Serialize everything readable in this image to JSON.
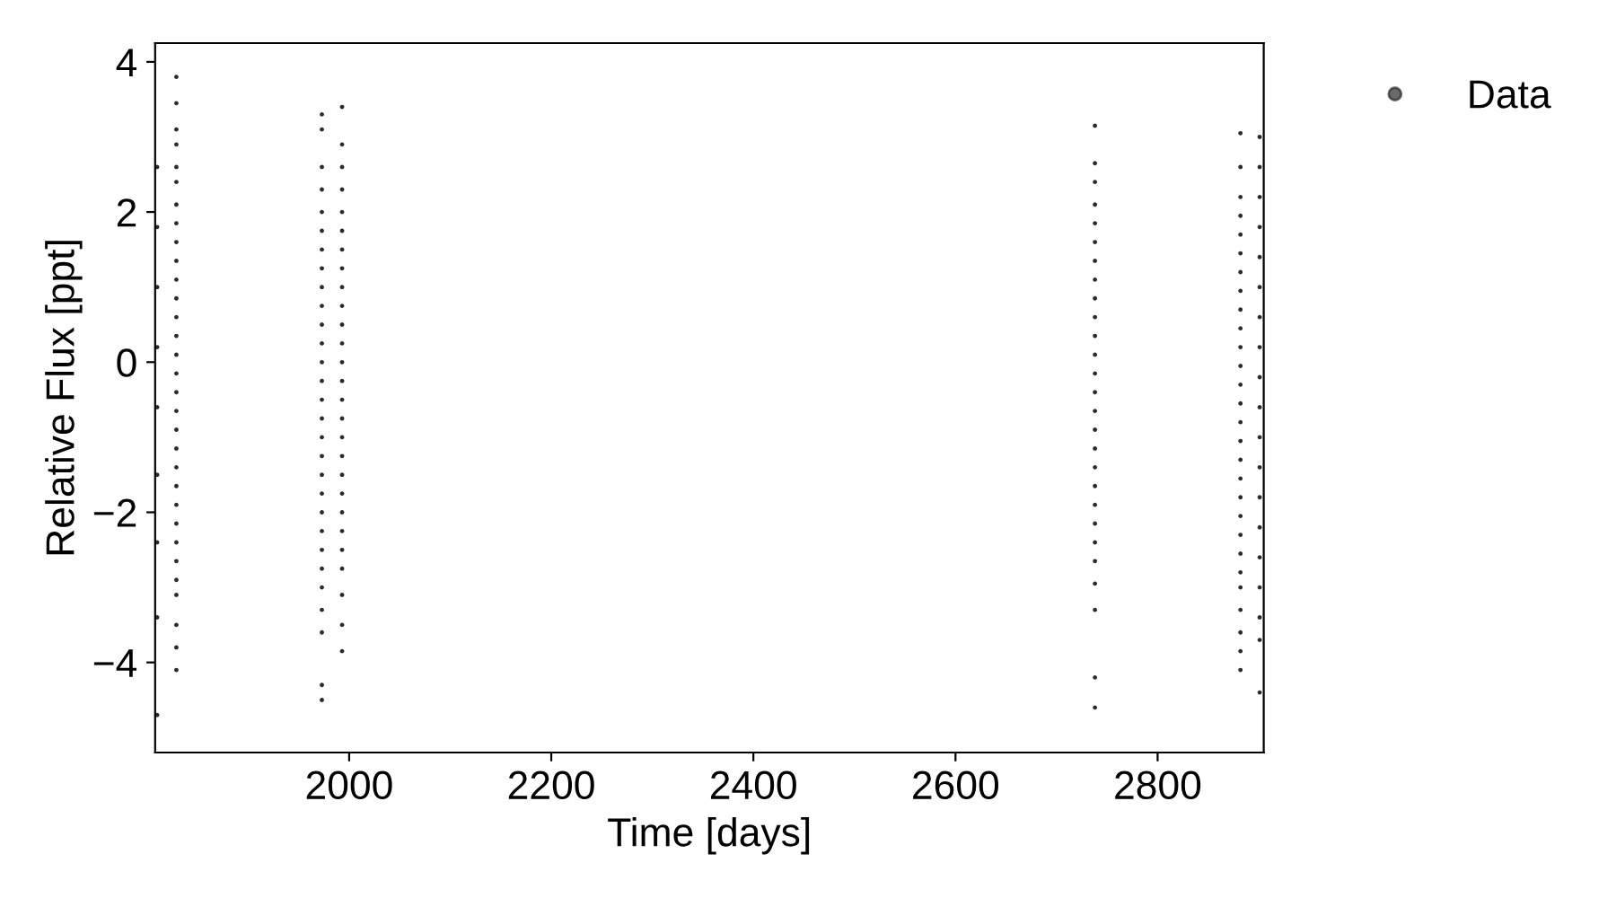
{
  "chart_data": {
    "type": "scatter",
    "xlabel": "Time [days]",
    "ylabel": "Relative Flux [ppt]",
    "xlim": [
      1808,
      2905
    ],
    "ylim": [
      -5.2,
      4.25
    ],
    "xticks": [
      2000,
      2200,
      2400,
      2600,
      2800
    ],
    "yticks": [
      {
        "value": -4,
        "label": "−4"
      },
      {
        "value": -2,
        "label": "−2"
      },
      0,
      2,
      4
    ],
    "grid": false,
    "legend": "top right",
    "marker": "circle",
    "series": [
      {
        "name": "Data",
        "color": "#2b2b2b",
        "x": [
          1829,
          1829,
          1829,
          1829,
          1829,
          1829,
          1829,
          1829,
          1829,
          1829,
          1829,
          1829,
          1829,
          1829,
          1829,
          1829,
          1829,
          1829,
          1829,
          1829,
          1829,
          1829,
          1829,
          1829,
          1829,
          1829,
          1829,
          1829,
          1829,
          1829,
          1829,
          1810,
          1810,
          1810,
          1810,
          1810,
          1810,
          1810,
          1810,
          1810,
          1973,
          1973,
          1973,
          1973,
          1973,
          1973,
          1973,
          1973,
          1973,
          1973,
          1973,
          1973,
          1973,
          1973,
          1973,
          1973,
          1973,
          1973,
          1973,
          1973,
          1973,
          1973,
          1973,
          1973,
          1973,
          1973,
          1973,
          1973,
          1973,
          1993,
          1993,
          1993,
          1993,
          1993,
          1993,
          1993,
          1993,
          1993,
          1993,
          1993,
          1993,
          1993,
          1993,
          1993,
          1993,
          1993,
          1993,
          1993,
          1993,
          1993,
          1993,
          1993,
          1993,
          1993,
          1993,
          1993,
          2738,
          2738,
          2738,
          2738,
          2738,
          2738,
          2738,
          2738,
          2738,
          2738,
          2738,
          2738,
          2738,
          2738,
          2738,
          2738,
          2738,
          2738,
          2738,
          2738,
          2738,
          2738,
          2738,
          2738,
          2738,
          2738,
          2738,
          2882,
          2882,
          2882,
          2882,
          2882,
          2882,
          2882,
          2882,
          2882,
          2882,
          2882,
          2882,
          2882,
          2882,
          2882,
          2882,
          2882,
          2882,
          2882,
          2882,
          2882,
          2882,
          2882,
          2882,
          2882,
          2882,
          2882,
          2882,
          2901,
          2901,
          2901,
          2901,
          2901,
          2901,
          2901,
          2901,
          2901,
          2901,
          2901,
          2901,
          2901,
          2901,
          2901,
          2901,
          2901,
          2901,
          2901
        ],
        "values": [
          3.8,
          3.45,
          3.1,
          2.9,
          2.6,
          2.4,
          2.1,
          1.85,
          1.6,
          1.35,
          1.1,
          0.85,
          0.6,
          0.35,
          0.1,
          -0.15,
          -0.4,
          -0.65,
          -0.9,
          -1.15,
          -1.4,
          -1.65,
          -1.9,
          -2.15,
          -2.4,
          -2.65,
          -2.9,
          -3.1,
          -3.5,
          -3.8,
          -4.1,
          2.6,
          1.8,
          1.0,
          0.2,
          -0.6,
          -1.5,
          -2.4,
          -3.4,
          -4.7,
          3.3,
          3.1,
          2.6,
          2.3,
          2.0,
          1.75,
          1.5,
          1.25,
          1.0,
          0.75,
          0.5,
          0.25,
          0,
          -0.25,
          -0.5,
          -0.75,
          -1.0,
          -1.25,
          -1.5,
          -1.75,
          -2.0,
          -2.25,
          -2.5,
          -2.75,
          -3.0,
          -3.3,
          -3.6,
          -4.3,
          -4.5,
          3.4,
          2.9,
          2.6,
          2.3,
          2.0,
          1.75,
          1.5,
          1.25,
          1.0,
          0.75,
          0.5,
          0.25,
          0,
          -0.25,
          -0.5,
          -0.75,
          -1.0,
          -1.25,
          -1.5,
          -1.75,
          -2.0,
          -2.25,
          -2.5,
          -2.75,
          -3.1,
          -3.5,
          -3.85,
          3.15,
          2.65,
          2.4,
          2.1,
          1.85,
          1.6,
          1.35,
          1.1,
          0.85,
          0.6,
          0.35,
          0.1,
          -0.15,
          -0.4,
          -0.65,
          -0.9,
          -1.15,
          -1.4,
          -1.65,
          -1.9,
          -2.15,
          -2.4,
          -2.65,
          -2.95,
          -3.3,
          -4.2,
          -4.6,
          3.05,
          2.6,
          2.2,
          1.95,
          1.7,
          1.45,
          1.2,
          0.95,
          0.7,
          0.45,
          0.2,
          -0.05,
          -0.3,
          -0.55,
          -0.8,
          -1.05,
          -1.3,
          -1.55,
          -1.8,
          -2.05,
          -2.3,
          -2.55,
          -2.8,
          -3.0,
          -3.3,
          -3.6,
          -3.85,
          -4.1,
          3.0,
          2.6,
          2.2,
          1.8,
          1.4,
          1.0,
          0.6,
          0.2,
          -0.2,
          -0.6,
          -1.0,
          -1.4,
          -1.8,
          -2.2,
          -2.6,
          -3.0,
          -3.4,
          -3.7,
          -4.4
        ]
      }
    ]
  }
}
